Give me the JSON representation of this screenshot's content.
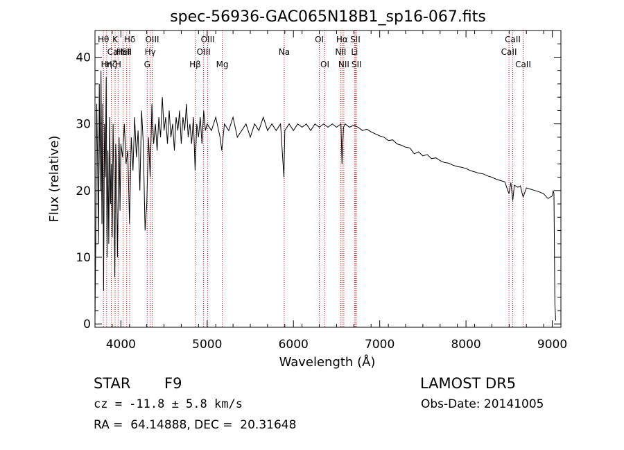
{
  "chart_data": {
    "type": "line",
    "title": "spec-56936-GAC065N18B1_sp16-067.fits",
    "xlabel": "Wavelength (Å)",
    "ylabel": "Flux (relative)",
    "xlim": [
      3700,
      9100
    ],
    "ylim": [
      -0.5,
      44
    ],
    "xticks": [
      4000,
      5000,
      6000,
      7000,
      8000,
      9000
    ],
    "yticks": [
      0,
      10,
      20,
      30,
      40
    ],
    "series": [
      {
        "points": [
          [
            3700,
            0.5
          ],
          [
            3710,
            14
          ],
          [
            3720,
            33
          ],
          [
            3730,
            25
          ],
          [
            3740,
            12
          ],
          [
            3750,
            36
          ],
          [
            3760,
            20
          ],
          [
            3770,
            38
          ],
          [
            3780,
            15
          ],
          [
            3790,
            33
          ],
          [
            3800,
            5
          ],
          [
            3810,
            30
          ],
          [
            3820,
            22
          ],
          [
            3830,
            37
          ],
          [
            3840,
            10
          ],
          [
            3850,
            26
          ],
          [
            3860,
            12
          ],
          [
            3870,
            31
          ],
          [
            3880,
            18
          ],
          [
            3890,
            24
          ],
          [
            3900,
            13
          ],
          [
            3910,
            30
          ],
          [
            3920,
            21
          ],
          [
            3930,
            7
          ],
          [
            3940,
            27
          ],
          [
            3950,
            23
          ],
          [
            3960,
            10
          ],
          [
            3970,
            20
          ],
          [
            3980,
            28
          ],
          [
            3990,
            17
          ],
          [
            4000,
            27
          ],
          [
            4020,
            25
          ],
          [
            4040,
            30
          ],
          [
            4060,
            24
          ],
          [
            4080,
            26
          ],
          [
            4100,
            15
          ],
          [
            4120,
            28
          ],
          [
            4140,
            23
          ],
          [
            4160,
            31
          ],
          [
            4180,
            25
          ],
          [
            4200,
            29
          ],
          [
            4220,
            20
          ],
          [
            4240,
            32
          ],
          [
            4260,
            27
          ],
          [
            4280,
            14
          ],
          [
            4300,
            18
          ],
          [
            4320,
            28
          ],
          [
            4340,
            22
          ],
          [
            4360,
            33
          ],
          [
            4380,
            27
          ],
          [
            4400,
            30
          ],
          [
            4420,
            26
          ],
          [
            4440,
            31
          ],
          [
            4460,
            28
          ],
          [
            4480,
            34
          ],
          [
            4500,
            29
          ],
          [
            4520,
            31
          ],
          [
            4540,
            27
          ],
          [
            4560,
            32
          ],
          [
            4580,
            28
          ],
          [
            4600,
            30
          ],
          [
            4620,
            26
          ],
          [
            4640,
            31
          ],
          [
            4660,
            29
          ],
          [
            4680,
            32
          ],
          [
            4700,
            27
          ],
          [
            4720,
            31
          ],
          [
            4740,
            29
          ],
          [
            4760,
            33
          ],
          [
            4780,
            28
          ],
          [
            4800,
            30
          ],
          [
            4820,
            27
          ],
          [
            4840,
            31
          ],
          [
            4860,
            23
          ],
          [
            4880,
            30
          ],
          [
            4900,
            28
          ],
          [
            4920,
            31
          ],
          [
            4940,
            27
          ],
          [
            4960,
            32
          ],
          [
            4980,
            29
          ],
          [
            5000,
            30
          ],
          [
            5050,
            29
          ],
          [
            5100,
            31
          ],
          [
            5150,
            28
          ],
          [
            5170,
            26
          ],
          [
            5200,
            30
          ],
          [
            5250,
            29
          ],
          [
            5300,
            31
          ],
          [
            5350,
            28
          ],
          [
            5400,
            29
          ],
          [
            5450,
            30
          ],
          [
            5500,
            28
          ],
          [
            5550,
            30
          ],
          [
            5600,
            29
          ],
          [
            5650,
            31
          ],
          [
            5700,
            29
          ],
          [
            5750,
            30
          ],
          [
            5800,
            29
          ],
          [
            5850,
            30
          ],
          [
            5890,
            22
          ],
          [
            5900,
            29
          ],
          [
            5950,
            30
          ],
          [
            6000,
            29
          ],
          [
            6050,
            30
          ],
          [
            6100,
            29.5
          ],
          [
            6150,
            30
          ],
          [
            6200,
            29
          ],
          [
            6250,
            30
          ],
          [
            6300,
            29.5
          ],
          [
            6350,
            30
          ],
          [
            6400,
            29.5
          ],
          [
            6450,
            30
          ],
          [
            6500,
            29.5
          ],
          [
            6550,
            30
          ],
          [
            6563,
            24
          ],
          [
            6580,
            29.5
          ],
          [
            6600,
            30
          ],
          [
            6650,
            29.5
          ],
          [
            6700,
            29.8
          ],
          [
            6750,
            29.5
          ],
          [
            6800,
            29
          ],
          [
            6850,
            29.2
          ],
          [
            6900,
            28.8
          ],
          [
            6950,
            28.5
          ],
          [
            7000,
            28.2
          ],
          [
            7050,
            28
          ],
          [
            7100,
            27.5
          ],
          [
            7150,
            27.6
          ],
          [
            7200,
            27
          ],
          [
            7250,
            26.8
          ],
          [
            7300,
            26.5
          ],
          [
            7350,
            26.4
          ],
          [
            7400,
            25.5
          ],
          [
            7450,
            25.8
          ],
          [
            7500,
            25.2
          ],
          [
            7550,
            25.4
          ],
          [
            7600,
            24.8
          ],
          [
            7650,
            24.9
          ],
          [
            7700,
            24.5
          ],
          [
            7750,
            24.2
          ],
          [
            7800,
            24.1
          ],
          [
            7850,
            23.8
          ],
          [
            7900,
            23.6
          ],
          [
            7950,
            23.5
          ],
          [
            8000,
            23.3
          ],
          [
            8050,
            23
          ],
          [
            8100,
            22.8
          ],
          [
            8150,
            22.6
          ],
          [
            8200,
            22.5
          ],
          [
            8250,
            22.2
          ],
          [
            8300,
            22
          ],
          [
            8350,
            21.7
          ],
          [
            8400,
            21.5
          ],
          [
            8450,
            21.3
          ],
          [
            8498,
            19.5
          ],
          [
            8520,
            21.2
          ],
          [
            8542,
            18.5
          ],
          [
            8560,
            20.8
          ],
          [
            8600,
            20.5
          ],
          [
            8630,
            20.7
          ],
          [
            8662,
            19
          ],
          [
            8700,
            20.4
          ],
          [
            8750,
            20.2
          ],
          [
            8800,
            20
          ],
          [
            8850,
            19.8
          ],
          [
            8900,
            19.5
          ],
          [
            8950,
            18.8
          ],
          [
            9000,
            19.2
          ],
          [
            9010,
            20
          ],
          [
            9020,
            19.5
          ],
          [
            9030,
            3
          ],
          [
            9040,
            0.5
          ]
        ]
      }
    ],
    "spectral_lines": [
      {
        "label": "Hθ",
        "wavelength": 3798,
        "row": 1
      },
      {
        "label": "CaII",
        "wavelength": 3933,
        "row": 2
      },
      {
        "label": "K",
        "wavelength": 3934,
        "row": 1
      },
      {
        "label": "Hζ",
        "wavelength": 3889,
        "row": 3
      },
      {
        "label": "HeI",
        "wavelength": 4026,
        "row": 2
      },
      {
        "label": "Hη",
        "wavelength": 3835,
        "row": 3
      },
      {
        "label": "H",
        "wavelength": 3968,
        "row": 3
      },
      {
        "label": "Hδ",
        "wavelength": 4102,
        "row": 1
      },
      {
        "label": "SII",
        "wavelength": 4068,
        "row": 2
      },
      {
        "label": "OIII",
        "wavelength": 4363,
        "row": 1
      },
      {
        "label": "Hγ",
        "wavelength": 4340,
        "row": 2
      },
      {
        "label": "G",
        "wavelength": 4305,
        "row": 3
      },
      {
        "label": "OIII",
        "wavelength": 5007,
        "row": 1
      },
      {
        "label": "OIII",
        "wavelength": 4959,
        "row": 2
      },
      {
        "label": "Hβ",
        "wavelength": 4861,
        "row": 3
      },
      {
        "label": "Mg",
        "wavelength": 5175,
        "row": 3
      },
      {
        "label": "Na",
        "wavelength": 5893,
        "row": 2
      },
      {
        "label": "OI",
        "wavelength": 6300,
        "row": 1
      },
      {
        "label": "OI",
        "wavelength": 6364,
        "row": 3
      },
      {
        "label": "Hα",
        "wavelength": 6563,
        "row": 1
      },
      {
        "label": "NII",
        "wavelength": 6548,
        "row": 2
      },
      {
        "label": "NII",
        "wavelength": 6584,
        "row": 3
      },
      {
        "label": "SII",
        "wavelength": 6717,
        "row": 1
      },
      {
        "label": "Li",
        "wavelength": 6708,
        "row": 2
      },
      {
        "label": "SII",
        "wavelength": 6731,
        "row": 3
      },
      {
        "label": "CaII",
        "wavelength": 8542,
        "row": 1
      },
      {
        "label": "CaII",
        "wavelength": 8498,
        "row": 2
      },
      {
        "label": "CaII",
        "wavelength": 8662,
        "row": 3
      }
    ],
    "line_color": "#000000",
    "marker_color": "#cc0000",
    "grid": false
  },
  "info": {
    "class": "STAR",
    "subclass": "F9",
    "survey": "LAMOST DR5",
    "cz": "cz = -11.8 ± 5.8 km/s",
    "obs_date": "Obs-Date: 20141005",
    "coords": "RA =  64.14888, DEC =  20.31648"
  }
}
